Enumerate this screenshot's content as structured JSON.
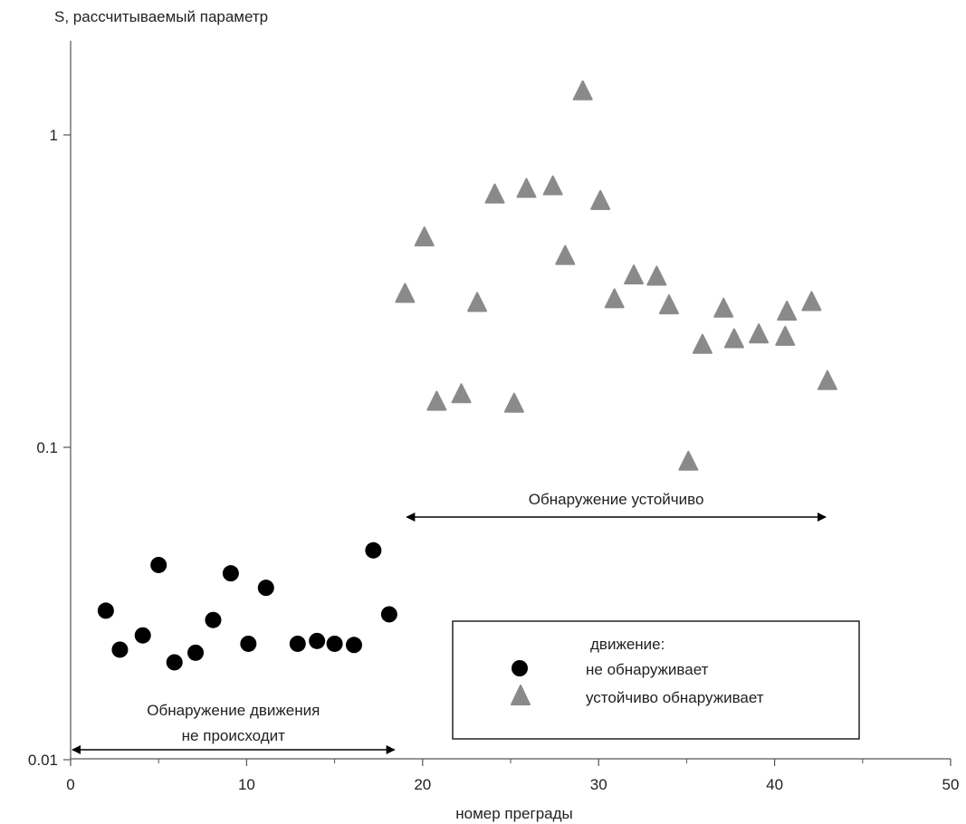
{
  "chart_data": {
    "type": "scatter",
    "title": "",
    "xlabel": "номер преграды",
    "ylabel": "S, рассчитываемый параметр",
    "xlim": [
      0,
      50
    ],
    "ylim": [
      0.01,
      3
    ],
    "y_scale": "log",
    "x_ticks": [
      "0",
      "10",
      "20",
      "30",
      "40",
      "50"
    ],
    "y_ticks": [
      {
        "value": 0.01,
        "label": "0.01"
      },
      {
        "value": 0.1,
        "label": "0.1"
      },
      {
        "value": 1,
        "label": "1"
      }
    ],
    "grid": false,
    "legend": {
      "title": "движение:",
      "placement": "bottom-center",
      "entries": [
        "не обнаруживает",
        "устойчиво обнаруживает"
      ]
    },
    "series": [
      {
        "name": "не обнаруживает",
        "marker": "circle",
        "color": "#000000",
        "x": [
          2,
          2.8,
          4.1,
          5,
          5.9,
          7.1,
          8.1,
          9.1,
          10.1,
          11.1,
          12.9,
          14,
          15,
          16.1,
          17.2,
          18.1
        ],
        "y": [
          0.03,
          0.0225,
          0.025,
          0.042,
          0.0205,
          0.022,
          0.028,
          0.0395,
          0.0235,
          0.0355,
          0.0235,
          0.024,
          0.0235,
          0.0233,
          0.0468,
          0.0292
        ]
      },
      {
        "name": "устойчиво обнаруживает",
        "marker": "triangle",
        "color": "#8a8a8a",
        "x": [
          19,
          20.1,
          20.8,
          22.2,
          23.1,
          24.1,
          25.2,
          25.9,
          27.4,
          28.1,
          29.1,
          30.1,
          30.9,
          32,
          33.3,
          34,
          35.1,
          35.9,
          37.1,
          37.7,
          39.1,
          40.6,
          40.7,
          42.1,
          43
        ],
        "y": [
          0.31,
          0.47,
          0.14,
          0.148,
          0.29,
          0.645,
          0.138,
          0.672,
          0.685,
          0.41,
          1.38,
          0.615,
          0.298,
          0.355,
          0.352,
          0.285,
          0.09,
          0.213,
          0.278,
          0.222,
          0.23,
          0.226,
          0.272,
          0.292,
          0.163
        ]
      }
    ],
    "annotations": [
      {
        "text": [
          "Обнаружение движения",
          "не происходит"
        ],
        "x_range": [
          0,
          18.5
        ],
        "y": 0.01
      },
      {
        "text": [
          "Обнаружение устойчиво"
        ],
        "x_range": [
          19,
          43
        ],
        "y": 0.06
      }
    ]
  }
}
